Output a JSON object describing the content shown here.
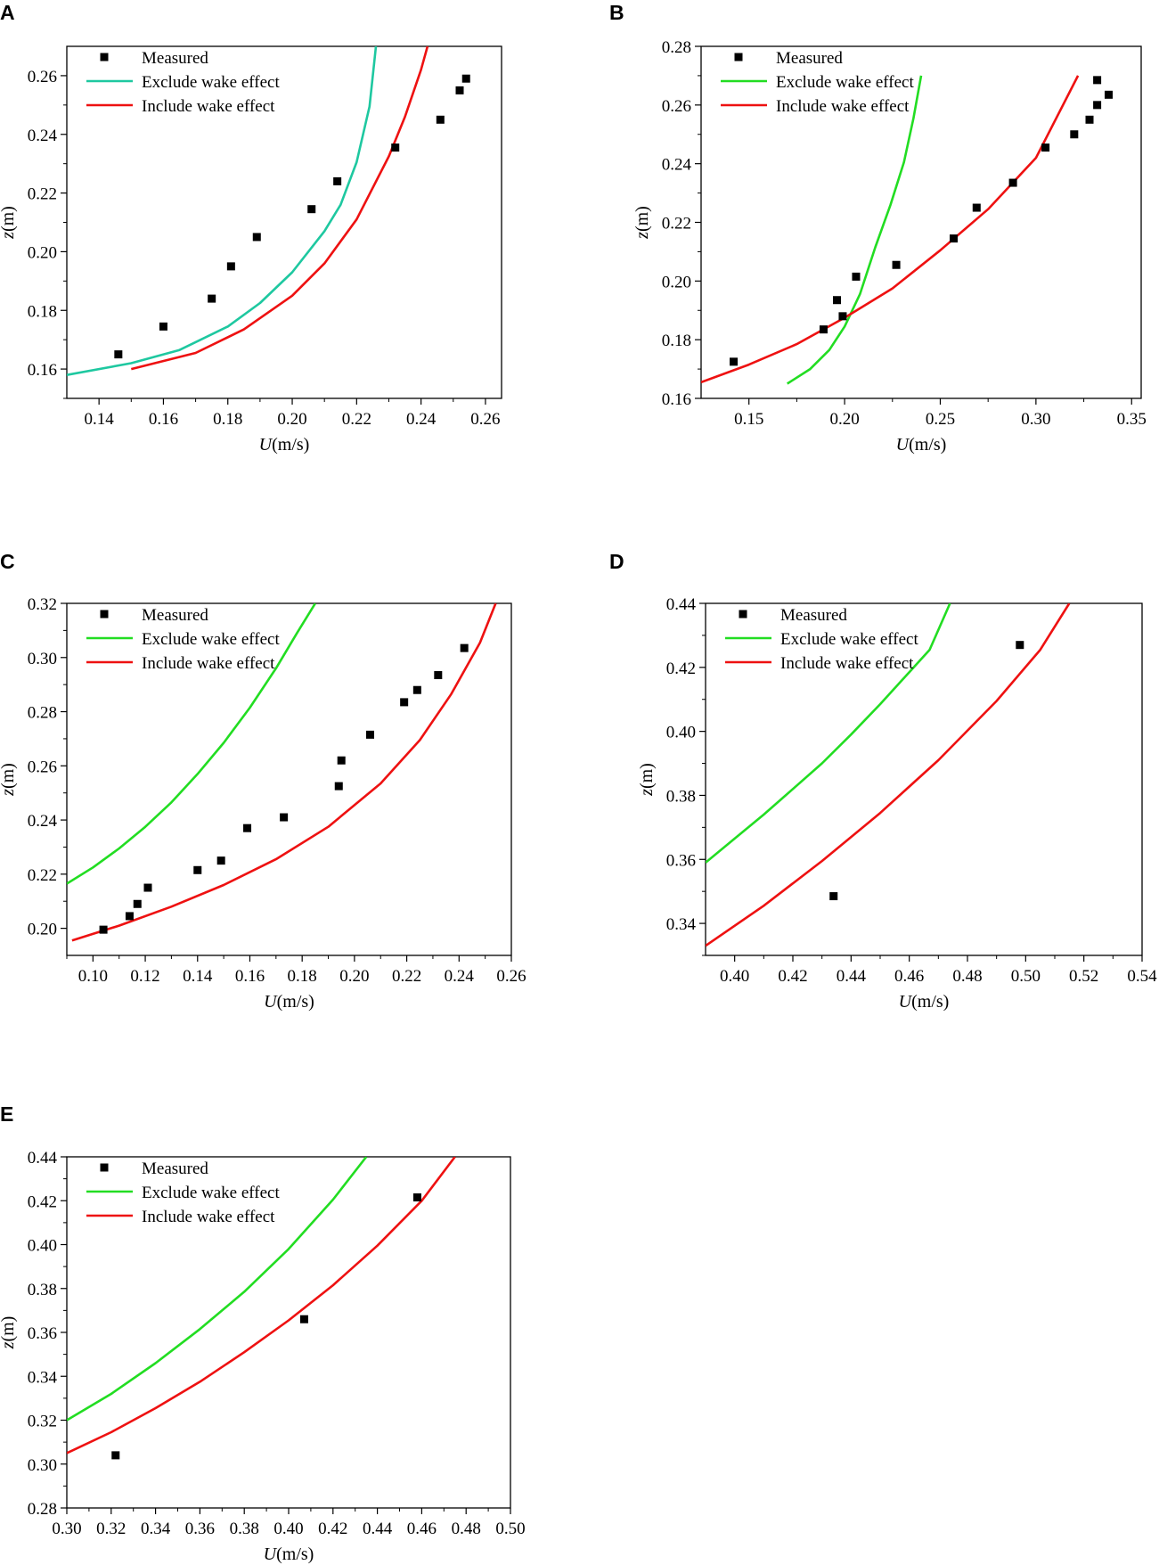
{
  "colors": {
    "measured": "#000000",
    "exclude_A": "#1ec8a0",
    "exclude": "#22dd22",
    "include": "#ee1111",
    "axis": "#000000"
  },
  "chart_data": [
    {
      "panel": "A",
      "type": "scatter",
      "xlabel_italic": "U",
      "xlabel_unit": "(m/s)",
      "ylabel_italic": "z",
      "ylabel_unit": "(m)",
      "xlim": [
        0.13,
        0.265
      ],
      "ylim": [
        0.15,
        0.27
      ],
      "xticks": [
        0.14,
        0.16,
        0.18,
        0.2,
        0.22,
        0.24,
        0.26
      ],
      "xtick_labels": [
        "0.14",
        "0.16",
        "0.18",
        "0.20",
        "0.22",
        "0.24",
        "0.26"
      ],
      "yticks": [
        0.16,
        0.18,
        0.2,
        0.22,
        0.24,
        0.26
      ],
      "ytick_labels": [
        "0.16",
        "0.18",
        "0.20",
        "0.22",
        "0.24",
        "0.26"
      ],
      "legend": [
        "Measured",
        "Exclude wake effect",
        "Include wake effect"
      ],
      "legend_position": "top-left",
      "measured": [
        [
          0.146,
          0.165
        ],
        [
          0.16,
          0.1745
        ],
        [
          0.175,
          0.184
        ],
        [
          0.181,
          0.195
        ],
        [
          0.189,
          0.205
        ],
        [
          0.206,
          0.2145
        ],
        [
          0.214,
          0.224
        ],
        [
          0.232,
          0.2355
        ],
        [
          0.246,
          0.245
        ],
        [
          0.252,
          0.255
        ],
        [
          0.254,
          0.259
        ]
      ],
      "exclude": [
        [
          0.13,
          0.158
        ],
        [
          0.15,
          0.162
        ],
        [
          0.165,
          0.1665
        ],
        [
          0.18,
          0.1745
        ],
        [
          0.19,
          0.1825
        ],
        [
          0.2,
          0.193
        ],
        [
          0.21,
          0.207
        ],
        [
          0.215,
          0.216
        ],
        [
          0.22,
          0.2305
        ],
        [
          0.224,
          0.2495
        ],
        [
          0.226,
          0.27
        ]
      ],
      "include": [
        [
          0.15,
          0.16
        ],
        [
          0.17,
          0.1655
        ],
        [
          0.185,
          0.1735
        ],
        [
          0.2,
          0.185
        ],
        [
          0.21,
          0.196
        ],
        [
          0.22,
          0.211
        ],
        [
          0.23,
          0.2325
        ],
        [
          0.235,
          0.246
        ],
        [
          0.24,
          0.262
        ],
        [
          0.242,
          0.27
        ]
      ]
    },
    {
      "panel": "B",
      "type": "scatter",
      "xlabel_italic": "U",
      "xlabel_unit": "(m/s)",
      "ylabel_italic": "z",
      "ylabel_unit": "(m)",
      "xlim": [
        0.125,
        0.355
      ],
      "ylim": [
        0.16,
        0.28
      ],
      "xticks": [
        0.15,
        0.2,
        0.25,
        0.3,
        0.35
      ],
      "xtick_labels": [
        "0.15",
        "0.20",
        "0.25",
        "0.30",
        "0.35"
      ],
      "yticks": [
        0.16,
        0.18,
        0.2,
        0.22,
        0.24,
        0.26,
        0.28
      ],
      "ytick_labels": [
        "0.16",
        "0.18",
        "0.20",
        "0.22",
        "0.24",
        "0.26",
        "0.28"
      ],
      "legend": [
        "Measured",
        "Exclude wake effect",
        "Include wake effect"
      ],
      "legend_position": "top-left",
      "measured": [
        [
          0.142,
          0.1725
        ],
        [
          0.189,
          0.1835
        ],
        [
          0.196,
          0.1935
        ],
        [
          0.199,
          0.188
        ],
        [
          0.206,
          0.2015
        ],
        [
          0.227,
          0.2055
        ],
        [
          0.257,
          0.2145
        ],
        [
          0.269,
          0.225
        ],
        [
          0.288,
          0.2335
        ],
        [
          0.305,
          0.2455
        ],
        [
          0.32,
          0.25
        ],
        [
          0.328,
          0.255
        ],
        [
          0.332,
          0.26
        ],
        [
          0.332,
          0.2685
        ],
        [
          0.338,
          0.2635
        ]
      ],
      "exclude": [
        [
          0.17,
          0.165
        ],
        [
          0.182,
          0.17
        ],
        [
          0.192,
          0.1765
        ],
        [
          0.2,
          0.1845
        ],
        [
          0.208,
          0.1955
        ],
        [
          0.216,
          0.2115
        ],
        [
          0.224,
          0.226
        ],
        [
          0.231,
          0.2405
        ],
        [
          0.236,
          0.2555
        ],
        [
          0.24,
          0.27
        ]
      ],
      "include": [
        [
          0.125,
          0.1655
        ],
        [
          0.15,
          0.1715
        ],
        [
          0.175,
          0.1785
        ],
        [
          0.2,
          0.1875
        ],
        [
          0.225,
          0.1975
        ],
        [
          0.25,
          0.2105
        ],
        [
          0.275,
          0.2245
        ],
        [
          0.3,
          0.242
        ],
        [
          0.322,
          0.27
        ]
      ]
    },
    {
      "panel": "C",
      "type": "scatter",
      "xlabel_italic": "U",
      "xlabel_unit": "(m/s)",
      "ylabel_italic": "z",
      "ylabel_unit": "(m)",
      "xlim": [
        0.09,
        0.26
      ],
      "ylim": [
        0.19,
        0.32
      ],
      "xticks": [
        0.1,
        0.12,
        0.14,
        0.16,
        0.18,
        0.2,
        0.22,
        0.24,
        0.26
      ],
      "xtick_labels": [
        "0.10",
        "0.12",
        "0.14",
        "0.16",
        "0.18",
        "0.20",
        "0.22",
        "0.24",
        "0.26"
      ],
      "yticks": [
        0.2,
        0.22,
        0.24,
        0.26,
        0.28,
        0.3,
        0.32
      ],
      "ytick_labels": [
        "0.20",
        "0.22",
        "0.24",
        "0.26",
        "0.28",
        "0.30",
        "0.32"
      ],
      "legend": [
        "Measured",
        "Exclude wake effect",
        "Include wake effect"
      ],
      "legend_position": "top-left",
      "measured": [
        [
          0.104,
          0.1995
        ],
        [
          0.114,
          0.2045
        ],
        [
          0.117,
          0.209
        ],
        [
          0.121,
          0.215
        ],
        [
          0.14,
          0.2215
        ],
        [
          0.149,
          0.225
        ],
        [
          0.159,
          0.237
        ],
        [
          0.173,
          0.241
        ],
        [
          0.194,
          0.2525
        ],
        [
          0.195,
          0.262
        ],
        [
          0.206,
          0.2715
        ],
        [
          0.219,
          0.2835
        ],
        [
          0.224,
          0.288
        ],
        [
          0.232,
          0.2935
        ],
        [
          0.242,
          0.3035
        ]
      ],
      "exclude": [
        [
          0.09,
          0.2165
        ],
        [
          0.1,
          0.2225
        ],
        [
          0.11,
          0.2295
        ],
        [
          0.12,
          0.2375
        ],
        [
          0.13,
          0.2465
        ],
        [
          0.14,
          0.257
        ],
        [
          0.15,
          0.2685
        ],
        [
          0.16,
          0.2815
        ],
        [
          0.17,
          0.296
        ],
        [
          0.178,
          0.309
        ],
        [
          0.185,
          0.32
        ]
      ],
      "include": [
        [
          0.092,
          0.1955
        ],
        [
          0.11,
          0.201
        ],
        [
          0.13,
          0.208
        ],
        [
          0.15,
          0.216
        ],
        [
          0.17,
          0.2255
        ],
        [
          0.19,
          0.2375
        ],
        [
          0.21,
          0.2535
        ],
        [
          0.225,
          0.2695
        ],
        [
          0.237,
          0.2865
        ],
        [
          0.248,
          0.3055
        ],
        [
          0.254,
          0.32
        ]
      ]
    },
    {
      "panel": "D",
      "type": "scatter",
      "xlabel_italic": "U",
      "xlabel_unit": "(m/s)",
      "ylabel_italic": "z",
      "ylabel_unit": "(m)",
      "xlim": [
        0.39,
        0.54
      ],
      "ylim": [
        0.33,
        0.44
      ],
      "xticks": [
        0.4,
        0.42,
        0.44,
        0.46,
        0.48,
        0.5,
        0.52,
        0.54
      ],
      "xtick_labels": [
        "0.40",
        "0.42",
        "0.44",
        "0.46",
        "0.48",
        "0.50",
        "0.52",
        "0.54"
      ],
      "yticks": [
        0.34,
        0.36,
        0.38,
        0.4,
        0.42,
        0.44
      ],
      "ytick_labels": [
        "0.34",
        "0.36",
        "0.38",
        "0.40",
        "0.42",
        "0.44"
      ],
      "legend": [
        "Measured",
        "Exclude wake effect",
        "Include wake effect"
      ],
      "legend_position": "top-left",
      "measured": [
        [
          0.434,
          0.3485
        ],
        [
          0.498,
          0.427
        ]
      ],
      "exclude": [
        [
          0.39,
          0.359
        ],
        [
          0.4,
          0.3665
        ],
        [
          0.41,
          0.374
        ],
        [
          0.42,
          0.382
        ],
        [
          0.43,
          0.39
        ],
        [
          0.44,
          0.399
        ],
        [
          0.45,
          0.4085
        ],
        [
          0.46,
          0.4185
        ],
        [
          0.467,
          0.4255
        ],
        [
          0.474,
          0.44
        ]
      ],
      "include": [
        [
          0.39,
          0.333
        ],
        [
          0.41,
          0.3455
        ],
        [
          0.43,
          0.3595
        ],
        [
          0.45,
          0.3745
        ],
        [
          0.47,
          0.391
        ],
        [
          0.49,
          0.4095
        ],
        [
          0.505,
          0.4255
        ],
        [
          0.515,
          0.44
        ]
      ]
    },
    {
      "panel": "E",
      "type": "scatter",
      "xlabel_italic": "U",
      "xlabel_unit": "(m/s)",
      "ylabel_italic": "z",
      "ylabel_unit": "(m)",
      "xlim": [
        0.3,
        0.5
      ],
      "ylim": [
        0.28,
        0.44
      ],
      "xticks": [
        0.3,
        0.32,
        0.34,
        0.36,
        0.38,
        0.4,
        0.42,
        0.44,
        0.46,
        0.48,
        0.5
      ],
      "xtick_labels": [
        "0.30",
        "0.32",
        "0.34",
        "0.36",
        "0.38",
        "0.40",
        "0.42",
        "0.44",
        "0.46",
        "0.48",
        "0.50"
      ],
      "yticks": [
        0.28,
        0.3,
        0.32,
        0.34,
        0.36,
        0.38,
        0.4,
        0.42,
        0.44
      ],
      "ytick_labels": [
        "0.28",
        "0.30",
        "0.32",
        "0.34",
        "0.36",
        "0.38",
        "0.40",
        "0.42",
        "0.44"
      ],
      "legend": [
        "Measured",
        "Exclude wake effect",
        "Include wake effect"
      ],
      "legend_position": "top-left",
      "measured": [
        [
          0.322,
          0.304
        ],
        [
          0.407,
          0.366
        ],
        [
          0.458,
          0.4215
        ]
      ],
      "exclude": [
        [
          0.3,
          0.32
        ],
        [
          0.32,
          0.332
        ],
        [
          0.34,
          0.346
        ],
        [
          0.36,
          0.3615
        ],
        [
          0.38,
          0.3785
        ],
        [
          0.4,
          0.398
        ],
        [
          0.42,
          0.4205
        ],
        [
          0.435,
          0.44
        ]
      ],
      "include": [
        [
          0.3,
          0.305
        ],
        [
          0.32,
          0.3145
        ],
        [
          0.34,
          0.3255
        ],
        [
          0.36,
          0.3375
        ],
        [
          0.38,
          0.351
        ],
        [
          0.4,
          0.3655
        ],
        [
          0.42,
          0.3815
        ],
        [
          0.44,
          0.3995
        ],
        [
          0.46,
          0.42
        ],
        [
          0.475,
          0.44
        ]
      ]
    }
  ]
}
